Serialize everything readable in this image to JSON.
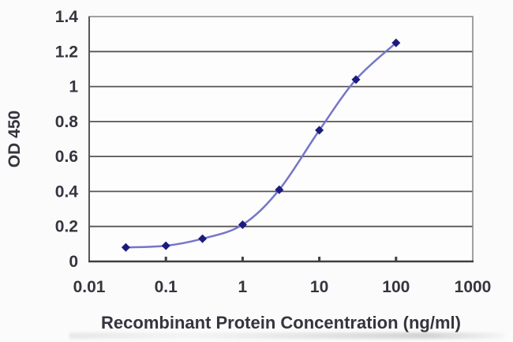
{
  "figure": {
    "background": "#fbfbfb"
  },
  "chart_data": {
    "type": "line",
    "xlabel": "Recombinant Protein Concentration (ng/ml)",
    "ylabel": "OD 450",
    "x_scale": "log",
    "xlim": [
      0.01,
      1000
    ],
    "ylim": [
      0,
      1.4
    ],
    "x_ticks": [
      0.01,
      0.1,
      1,
      10,
      100,
      1000
    ],
    "x_tick_labels": [
      "0.01",
      "0.1",
      "1",
      "10",
      "100",
      "1000"
    ],
    "y_ticks": [
      0,
      0.2,
      0.4,
      0.6,
      0.8,
      1,
      1.2,
      1.4
    ],
    "y_tick_labels": [
      "0",
      "0.2",
      "0.4",
      "0.6",
      "0.8",
      "1",
      "1.2",
      "1.4"
    ],
    "grid": "horizontal",
    "legend": "none",
    "series": [
      {
        "marker": "diamond",
        "x": [
          0.03,
          0.1,
          0.3,
          1,
          3,
          10,
          30,
          100
        ],
        "y": [
          0.08,
          0.09,
          0.13,
          0.21,
          0.41,
          0.75,
          1.04,
          1.25
        ]
      }
    ],
    "colors": {
      "line": "#7576c8",
      "marker": "#1b1b7e",
      "grid": "#565656",
      "axis": "#3f3f3f",
      "border": "#8a8a8a",
      "tick_text": "#35353f",
      "plot_background": "#fdfdfd"
    }
  }
}
